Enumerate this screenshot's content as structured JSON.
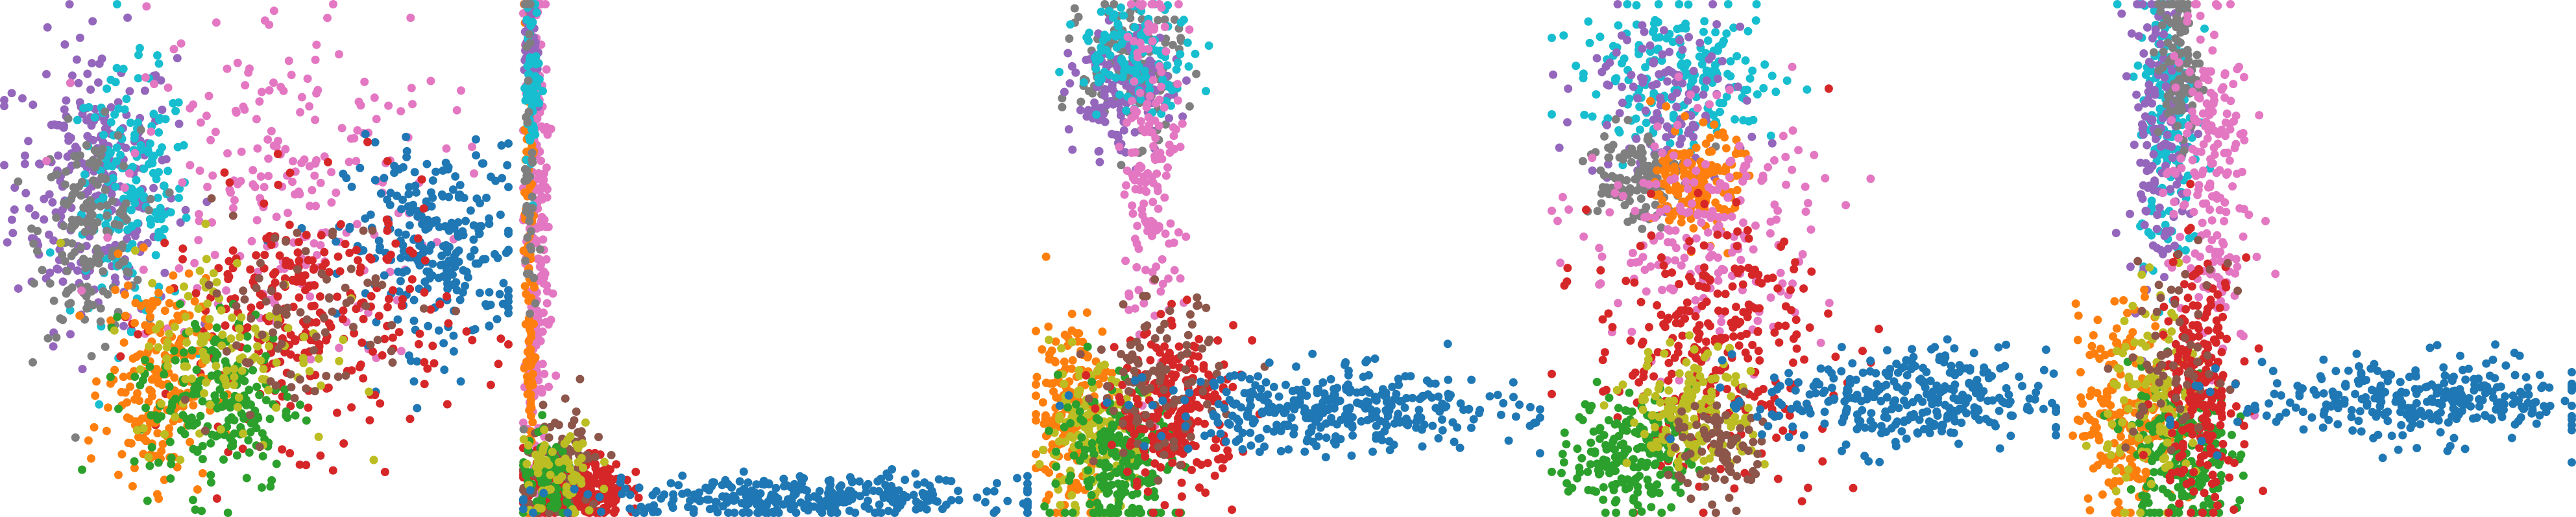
{
  "figure": {
    "panel_count": 5
  },
  "colors": {
    "cat0": "#1f77b4",
    "cat1": "#ff7f0e",
    "cat2": "#2ca02c",
    "cat3": "#d62728",
    "cat4": "#9467bd",
    "cat5": "#8c564b",
    "cat6": "#e377c2",
    "cat7": "#7f7f7f",
    "cat8": "#bcbd22",
    "cat9": "#17becf"
  },
  "chart_data": [
    {
      "type": "scatter",
      "axes": "off",
      "grid": false,
      "legend": "none",
      "xlim": [
        0,
        1
      ],
      "ylim": [
        0,
        1
      ],
      "clusters": [
        {
          "category": 4,
          "count": 260,
          "x": 0.18,
          "y": 0.65,
          "sx": 0.08,
          "sy": 0.14
        },
        {
          "category": 9,
          "count": 180,
          "x": 0.25,
          "y": 0.62,
          "sx": 0.06,
          "sy": 0.12
        },
        {
          "category": 7,
          "count": 160,
          "x": 0.17,
          "y": 0.55,
          "sx": 0.05,
          "sy": 0.1
        },
        {
          "category": 6,
          "count": 220,
          "x": 0.55,
          "y": 0.65,
          "sx": 0.16,
          "sy": 0.18
        },
        {
          "category": 0,
          "count": 260,
          "x": 0.86,
          "y": 0.52,
          "sx": 0.09,
          "sy": 0.1
        },
        {
          "category": 3,
          "count": 280,
          "x": 0.6,
          "y": 0.38,
          "sx": 0.14,
          "sy": 0.12
        },
        {
          "category": 1,
          "count": 200,
          "x": 0.3,
          "y": 0.26,
          "sx": 0.05,
          "sy": 0.1
        },
        {
          "category": 2,
          "count": 200,
          "x": 0.42,
          "y": 0.22,
          "sx": 0.08,
          "sy": 0.09
        },
        {
          "category": 8,
          "count": 120,
          "x": 0.45,
          "y": 0.32,
          "sx": 0.1,
          "sy": 0.1
        },
        {
          "category": 5,
          "count": 80,
          "x": 0.58,
          "y": 0.4,
          "sx": 0.12,
          "sy": 0.1
        }
      ]
    },
    {
      "type": "scatter",
      "axes": "off",
      "grid": false,
      "legend": "none",
      "xlim": [
        0,
        1
      ],
      "ylim": [
        0,
        1
      ],
      "clusters": [
        {
          "category": 6,
          "count": 240,
          "x": 0.025,
          "y": 0.55,
          "sx": 0.012,
          "sy": 0.28
        },
        {
          "category": 1,
          "count": 140,
          "x": 0.012,
          "y": 0.55,
          "sx": 0.005,
          "sy": 0.3
        },
        {
          "category": 4,
          "count": 80,
          "x": 0.015,
          "y": 0.9,
          "sx": 0.006,
          "sy": 0.06
        },
        {
          "category": 9,
          "count": 60,
          "x": 0.018,
          "y": 0.85,
          "sx": 0.008,
          "sy": 0.08
        },
        {
          "category": 3,
          "count": 260,
          "x": 0.1,
          "y": 0.05,
          "sx": 0.05,
          "sy": 0.035
        },
        {
          "category": 5,
          "count": 80,
          "x": 0.08,
          "y": 0.1,
          "sx": 0.04,
          "sy": 0.06
        },
        {
          "category": 2,
          "count": 80,
          "x": 0.05,
          "y": 0.06,
          "sx": 0.03,
          "sy": 0.04
        },
        {
          "category": 8,
          "count": 60,
          "x": 0.07,
          "y": 0.08,
          "sx": 0.04,
          "sy": 0.05
        },
        {
          "category": 0,
          "count": 320,
          "x": 0.55,
          "y": 0.03,
          "sx": 0.22,
          "sy": 0.02
        },
        {
          "category": 7,
          "count": 40,
          "x": 0.012,
          "y": 0.7,
          "sx": 0.005,
          "sy": 0.2
        }
      ]
    },
    {
      "type": "scatter",
      "axes": "off",
      "grid": false,
      "legend": "none",
      "xlim": [
        0,
        1
      ],
      "ylim": [
        0,
        1
      ],
      "clusters": [
        {
          "category": 7,
          "count": 160,
          "x": 0.19,
          "y": 0.88,
          "sx": 0.05,
          "sy": 0.07
        },
        {
          "category": 4,
          "count": 120,
          "x": 0.17,
          "y": 0.82,
          "sx": 0.05,
          "sy": 0.06
        },
        {
          "category": 9,
          "count": 120,
          "x": 0.2,
          "y": 0.9,
          "sx": 0.06,
          "sy": 0.05
        },
        {
          "category": 6,
          "count": 160,
          "x": 0.23,
          "y": 0.7,
          "sx": 0.03,
          "sy": 0.18
        },
        {
          "category": 1,
          "count": 180,
          "x": 0.07,
          "y": 0.2,
          "sx": 0.04,
          "sy": 0.1
        },
        {
          "category": 8,
          "count": 140,
          "x": 0.1,
          "y": 0.14,
          "sx": 0.05,
          "sy": 0.07
        },
        {
          "category": 2,
          "count": 220,
          "x": 0.17,
          "y": 0.1,
          "sx": 0.06,
          "sy": 0.08
        },
        {
          "category": 3,
          "count": 240,
          "x": 0.28,
          "y": 0.2,
          "sx": 0.06,
          "sy": 0.08
        },
        {
          "category": 5,
          "count": 100,
          "x": 0.24,
          "y": 0.26,
          "sx": 0.06,
          "sy": 0.08
        },
        {
          "category": 0,
          "count": 340,
          "x": 0.6,
          "y": 0.2,
          "sx": 0.18,
          "sy": 0.04
        }
      ]
    },
    {
      "type": "scatter",
      "axes": "off",
      "grid": false,
      "legend": "none",
      "xlim": [
        0,
        1
      ],
      "ylim": [
        0,
        1
      ],
      "clusters": [
        {
          "category": 9,
          "count": 200,
          "x": 0.26,
          "y": 0.85,
          "sx": 0.1,
          "sy": 0.07
        },
        {
          "category": 4,
          "count": 120,
          "x": 0.22,
          "y": 0.82,
          "sx": 0.08,
          "sy": 0.08
        },
        {
          "category": 7,
          "count": 120,
          "x": 0.16,
          "y": 0.66,
          "sx": 0.05,
          "sy": 0.05
        },
        {
          "category": 1,
          "count": 160,
          "x": 0.29,
          "y": 0.65,
          "sx": 0.04,
          "sy": 0.05
        },
        {
          "category": 6,
          "count": 200,
          "x": 0.3,
          "y": 0.55,
          "sx": 0.12,
          "sy": 0.12
        },
        {
          "category": 3,
          "count": 280,
          "x": 0.32,
          "y": 0.32,
          "sx": 0.12,
          "sy": 0.12
        },
        {
          "category": 2,
          "count": 200,
          "x": 0.16,
          "y": 0.12,
          "sx": 0.06,
          "sy": 0.06
        },
        {
          "category": 8,
          "count": 160,
          "x": 0.28,
          "y": 0.2,
          "sx": 0.06,
          "sy": 0.06
        },
        {
          "category": 5,
          "count": 80,
          "x": 0.34,
          "y": 0.12,
          "sx": 0.05,
          "sy": 0.05
        },
        {
          "category": 0,
          "count": 320,
          "x": 0.7,
          "y": 0.22,
          "sx": 0.14,
          "sy": 0.05
        }
      ]
    },
    {
      "type": "scatter",
      "axes": "off",
      "grid": false,
      "legend": "none",
      "xlim": [
        0,
        1
      ],
      "ylim": [
        0,
        1
      ],
      "clusters": [
        {
          "category": 9,
          "count": 180,
          "x": 0.2,
          "y": 0.8,
          "sx": 0.03,
          "sy": 0.15
        },
        {
          "category": 4,
          "count": 140,
          "x": 0.18,
          "y": 0.75,
          "sx": 0.03,
          "sy": 0.15
        },
        {
          "category": 7,
          "count": 100,
          "x": 0.22,
          "y": 0.88,
          "sx": 0.02,
          "sy": 0.08
        },
        {
          "category": 6,
          "count": 200,
          "x": 0.28,
          "y": 0.65,
          "sx": 0.04,
          "sy": 0.18
        },
        {
          "category": 1,
          "count": 200,
          "x": 0.12,
          "y": 0.2,
          "sx": 0.05,
          "sy": 0.1
        },
        {
          "category": 2,
          "count": 200,
          "x": 0.22,
          "y": 0.12,
          "sx": 0.05,
          "sy": 0.08
        },
        {
          "category": 8,
          "count": 120,
          "x": 0.18,
          "y": 0.22,
          "sx": 0.05,
          "sy": 0.1
        },
        {
          "category": 3,
          "count": 220,
          "x": 0.26,
          "y": 0.25,
          "sx": 0.04,
          "sy": 0.12
        },
        {
          "category": 5,
          "count": 60,
          "x": 0.22,
          "y": 0.3,
          "sx": 0.05,
          "sy": 0.1
        },
        {
          "category": 0,
          "count": 300,
          "x": 0.7,
          "y": 0.22,
          "sx": 0.18,
          "sy": 0.04
        }
      ]
    }
  ]
}
